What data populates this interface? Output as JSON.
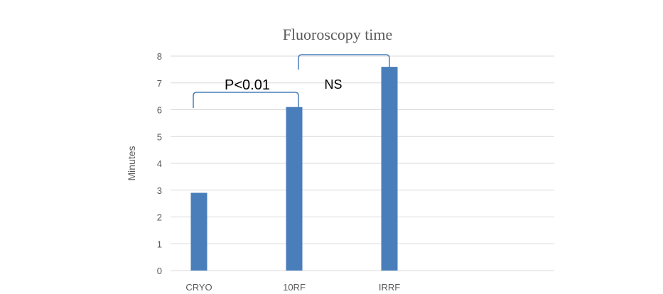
{
  "chart_data": {
    "type": "bar",
    "title": "Fluoroscopy time",
    "xlabel": "",
    "ylabel": "Minutes",
    "categories": [
      "CRYO",
      "10RF",
      "IRRF"
    ],
    "values": [
      2.9,
      6.1,
      7.6
    ],
    "ylim": [
      0,
      8
    ],
    "yticks": [
      "0",
      "1",
      "2",
      "3",
      "4",
      "5",
      "6",
      "7",
      "8"
    ],
    "grid": true,
    "legend": "none",
    "colors": {
      "bar": "#4a7ebb",
      "grid": "#d9d9d9",
      "bracket": "#4a7ebb"
    },
    "annotations": [
      {
        "text": "P<0.01",
        "from": "CRYO",
        "to": "10RF"
      },
      {
        "text": "NS",
        "from": "10RF",
        "to": "IRRF"
      }
    ]
  }
}
